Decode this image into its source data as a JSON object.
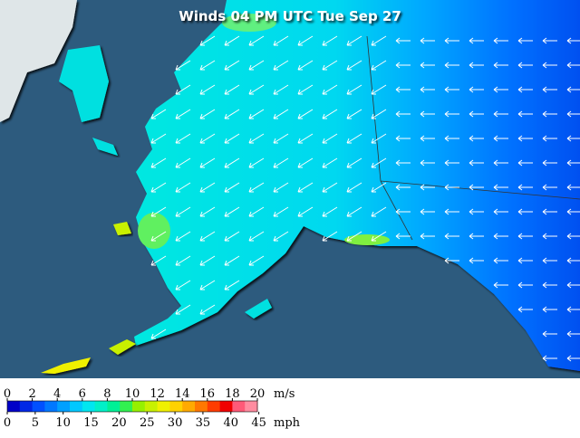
{
  "title": "Winds 04 PM UTC Tue Sep 27",
  "legend": {
    "colors": [
      "#0000c8",
      "#0028e6",
      "#0050ff",
      "#0078ff",
      "#00a0ff",
      "#00c8ff",
      "#00e6f0",
      "#00f0c8",
      "#00f096",
      "#32f050",
      "#96f000",
      "#c8f000",
      "#f0f000",
      "#ffd200",
      "#ffaa00",
      "#ff7800",
      "#ff3c00",
      "#f00000",
      "#ff5a78",
      "#ff8ca0"
    ],
    "ms_ticks": [
      0,
      2,
      4,
      6,
      8,
      10,
      12,
      14,
      16,
      18,
      20
    ],
    "ms_unit": "m/s",
    "mph_ticks": [
      0,
      5,
      10,
      15,
      20,
      25,
      30,
      35,
      40,
      45
    ],
    "mph_unit": "mph"
  }
}
